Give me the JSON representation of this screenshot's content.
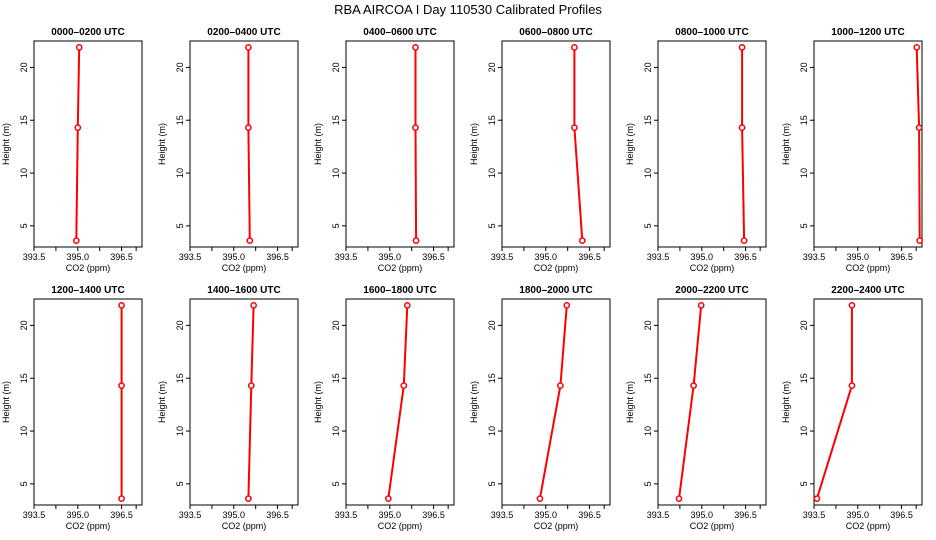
{
  "figure_title": "RBA AIRCOA I  Day 110530  Calibrated Profiles",
  "colors": {
    "series": "#ff0000",
    "axis": "#000000"
  },
  "chart_data": [
    {
      "type": "line",
      "title": "0000–0200 UTC",
      "xlabel": "CO2 (ppm)",
      "ylabel": "Height (m)",
      "xlim": [
        393.5,
        397.2
      ],
      "ylim": [
        3,
        22.5
      ],
      "xticks": [
        "393.5",
        "395.0",
        "396.5"
      ],
      "yticks": [
        "5",
        "10",
        "15",
        "20"
      ],
      "grid": false,
      "series": [
        {
          "x": [
            394.95,
            395.0,
            395.05
          ],
          "y": [
            3.6,
            14.3,
            21.9
          ]
        }
      ]
    },
    {
      "type": "line",
      "title": "0200–0400 UTC",
      "xlabel": "CO2 (ppm)",
      "ylabel": "Height (m)",
      "xlim": [
        393.5,
        397.2
      ],
      "ylim": [
        3,
        22.5
      ],
      "xticks": [
        "393.5",
        "395.0",
        "396.5"
      ],
      "yticks": [
        "5",
        "10",
        "15",
        "20"
      ],
      "grid": false,
      "series": [
        {
          "x": [
            395.55,
            395.5,
            395.5
          ],
          "y": [
            3.6,
            14.3,
            21.9
          ]
        }
      ]
    },
    {
      "type": "line",
      "title": "0400–0600 UTC",
      "xlabel": "CO2 (ppm)",
      "ylabel": "Height (m)",
      "xlim": [
        393.5,
        397.2
      ],
      "ylim": [
        3,
        22.5
      ],
      "xticks": [
        "393.5",
        "395.0",
        "396.5"
      ],
      "yticks": [
        "5",
        "10",
        "15",
        "20"
      ],
      "grid": false,
      "series": [
        {
          "x": [
            395.9,
            395.88,
            395.88
          ],
          "y": [
            3.6,
            14.3,
            21.9
          ]
        }
      ]
    },
    {
      "type": "line",
      "title": "0600–0800 UTC",
      "xlabel": "CO2 (ppm)",
      "ylabel": "Height (m)",
      "xlim": [
        393.5,
        397.2
      ],
      "ylim": [
        3,
        22.5
      ],
      "xticks": [
        "393.5",
        "395.0",
        "396.5"
      ],
      "yticks": [
        "5",
        "10",
        "15",
        "20"
      ],
      "grid": false,
      "series": [
        {
          "x": [
            396.25,
            395.98,
            395.98
          ],
          "y": [
            3.6,
            14.3,
            21.9
          ]
        }
      ]
    },
    {
      "type": "line",
      "title": "0800–1000 UTC",
      "xlabel": "CO2 (ppm)",
      "ylabel": "Height (m)",
      "xlim": [
        393.5,
        397.2
      ],
      "ylim": [
        3,
        22.5
      ],
      "xticks": [
        "393.5",
        "395.0",
        "396.5"
      ],
      "yticks": [
        "5",
        "10",
        "15",
        "20"
      ],
      "grid": false,
      "series": [
        {
          "x": [
            396.45,
            396.38,
            396.38
          ],
          "y": [
            3.6,
            14.3,
            21.9
          ]
        }
      ]
    },
    {
      "type": "line",
      "title": "1000–1200 UTC",
      "xlabel": "CO2 (ppm)",
      "ylabel": "Height (m)",
      "xlim": [
        393.5,
        397.2
      ],
      "ylim": [
        3,
        22.5
      ],
      "xticks": [
        "393.5",
        "395.0",
        "396.5"
      ],
      "yticks": [
        "5",
        "10",
        "15",
        "20"
      ],
      "grid": false,
      "series": [
        {
          "x": [
            397.12,
            397.1,
            397.02
          ],
          "y": [
            3.6,
            14.3,
            21.9
          ]
        }
      ]
    },
    {
      "type": "line",
      "title": "1200–1400 UTC",
      "xlabel": "CO2 (ppm)",
      "ylabel": "Height (m)",
      "xlim": [
        393.5,
        397.2
      ],
      "ylim": [
        3,
        22.5
      ],
      "xticks": [
        "393.5",
        "395.0",
        "396.5"
      ],
      "yticks": [
        "5",
        "10",
        "15",
        "20"
      ],
      "grid": false,
      "series": [
        {
          "x": [
            396.5,
            396.5,
            396.5
          ],
          "y": [
            3.6,
            14.3,
            21.9
          ]
        }
      ]
    },
    {
      "type": "line",
      "title": "1400–1600 UTC",
      "xlabel": "CO2 (ppm)",
      "ylabel": "Height (m)",
      "xlim": [
        393.5,
        397.2
      ],
      "ylim": [
        3,
        22.5
      ],
      "xticks": [
        "393.5",
        "395.0",
        "396.5"
      ],
      "yticks": [
        "5",
        "10",
        "15",
        "20"
      ],
      "grid": false,
      "series": [
        {
          "x": [
            395.5,
            395.6,
            395.68
          ],
          "y": [
            3.6,
            14.3,
            21.9
          ]
        }
      ]
    },
    {
      "type": "line",
      "title": "1600–1800 UTC",
      "xlabel": "CO2 (ppm)",
      "ylabel": "Height (m)",
      "xlim": [
        393.5,
        397.2
      ],
      "ylim": [
        3,
        22.5
      ],
      "xticks": [
        "393.5",
        "395.0",
        "396.5"
      ],
      "yticks": [
        "5",
        "10",
        "15",
        "20"
      ],
      "grid": false,
      "series": [
        {
          "x": [
            394.95,
            395.48,
            395.6
          ],
          "y": [
            3.6,
            14.3,
            21.9
          ]
        }
      ]
    },
    {
      "type": "line",
      "title": "1800–2000 UTC",
      "xlabel": "CO2 (ppm)",
      "ylabel": "Height (m)",
      "xlim": [
        393.5,
        397.2
      ],
      "ylim": [
        3,
        22.5
      ],
      "xticks": [
        "393.5",
        "395.0",
        "396.5"
      ],
      "yticks": [
        "5",
        "10",
        "15",
        "20"
      ],
      "grid": false,
      "series": [
        {
          "x": [
            394.8,
            395.5,
            395.72
          ],
          "y": [
            3.6,
            14.3,
            21.9
          ]
        }
      ]
    },
    {
      "type": "line",
      "title": "2000–2200 UTC",
      "xlabel": "CO2 (ppm)",
      "ylabel": "Height (m)",
      "xlim": [
        393.5,
        397.2
      ],
      "ylim": [
        3,
        22.5
      ],
      "xticks": [
        "393.5",
        "395.0",
        "396.5"
      ],
      "yticks": [
        "5",
        "10",
        "15",
        "20"
      ],
      "grid": false,
      "series": [
        {
          "x": [
            394.22,
            394.72,
            394.98
          ],
          "y": [
            3.6,
            14.3,
            21.9
          ]
        }
      ]
    },
    {
      "type": "line",
      "title": "2200–2400 UTC",
      "xlabel": "CO2 (ppm)",
      "ylabel": "Height (m)",
      "xlim": [
        393.5,
        397.2
      ],
      "ylim": [
        3,
        22.5
      ],
      "xticks": [
        "393.5",
        "395.0",
        "396.5"
      ],
      "yticks": [
        "5",
        "10",
        "15",
        "20"
      ],
      "grid": false,
      "series": [
        {
          "x": [
            393.6,
            394.8,
            394.8
          ],
          "y": [
            3.6,
            14.3,
            21.9
          ]
        }
      ]
    }
  ]
}
